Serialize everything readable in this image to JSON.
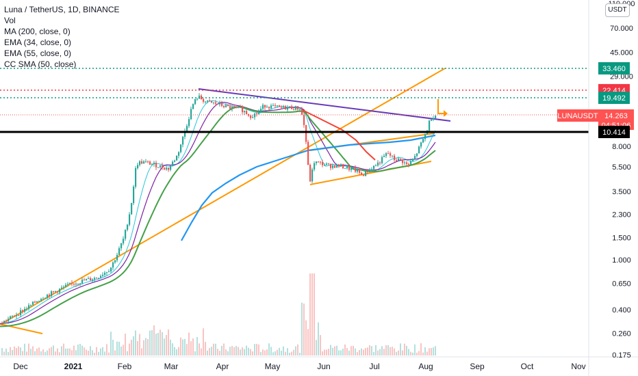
{
  "legend": {
    "title": "Luna / TetherUS, 1D, BINANCE",
    "items": [
      "Vol",
      "MA (200, close, 0)",
      "EMA (34, close, 0)",
      "EMA (55, close, 0)",
      "CC SMA (50, close)"
    ]
  },
  "currency_button": "USDT",
  "price_axis": {
    "ticks": [
      "110.000",
      "70.000",
      "45.000",
      "29.000",
      "8.000",
      "5.500",
      "3.500",
      "2.300",
      "1.500",
      "1.000",
      "0.650",
      "0.400",
      "0.260",
      "0.175"
    ],
    "tick_values": [
      110,
      70,
      45,
      29,
      8,
      5.5,
      3.5,
      2.3,
      1.5,
      1.0,
      0.65,
      0.4,
      0.26,
      0.175
    ],
    "ylim": [
      0.175,
      110
    ],
    "scale": "log"
  },
  "time_axis": {
    "ticks": [
      "Dec",
      "2021",
      "Feb",
      "Mar",
      "Apr",
      "May",
      "Jun",
      "Jul",
      "Aug",
      "Sep",
      "Oct",
      "Nov"
    ]
  },
  "price_labels": [
    {
      "text": "33.460",
      "value": 33.46,
      "color": "#089981"
    },
    {
      "text": "22.414",
      "value": 22.414,
      "color": "#f23645"
    },
    {
      "text": "19.492",
      "value": 19.492,
      "color": "#089981"
    },
    {
      "text": "LUNAUSDT",
      "value": 14.263,
      "color": "#ff5252",
      "kind": "symbol"
    },
    {
      "text": "14.263",
      "value": 14.263,
      "color": "#ffffff",
      "kind": "last"
    },
    {
      "text": "04:51:06",
      "value": 12.9,
      "color": "#ffffff",
      "kind": "timer"
    },
    {
      "text": "10.414",
      "value": 10.414,
      "color": "#000000"
    }
  ],
  "colors": {
    "up": "#26a69a",
    "down": "#ef5350",
    "ma200": "#2196f3",
    "ema34": "#26c6da",
    "ema55": "#7b1fa2",
    "ccsma": "#43a047",
    "trend_orange": "#ff9800",
    "trend_purple": "#673ab7",
    "trend_red": "#f44336",
    "level_black": "#000000",
    "dotted_green": "#089981",
    "dotted_red": "#f23645"
  },
  "chart_data": {
    "type": "candlestick",
    "title": "Luna / TetherUS, 1D, BINANCE",
    "y_scale": "log",
    "ylim": [
      0.175,
      110
    ],
    "series": [
      {
        "name": "Luna / TetherUS",
        "x": [
          "2020-11-20",
          "2020-12-01",
          "2020-12-15",
          "2021-01-01",
          "2021-01-15",
          "2021-02-01",
          "2021-02-10",
          "2021-02-20",
          "2021-03-01",
          "2021-03-10",
          "2021-03-20",
          "2021-04-01",
          "2021-04-15",
          "2021-05-01",
          "2021-05-15",
          "2021-05-20",
          "2021-06-01",
          "2021-06-15",
          "2021-07-01",
          "2021-07-15",
          "2021-07-25",
          "2021-08-01",
          "2021-08-05"
        ],
        "close": [
          0.31,
          0.35,
          0.4,
          0.5,
          0.58,
          0.75,
          1.5,
          4.5,
          6.5,
          10.5,
          19,
          17,
          15,
          17,
          14,
          7,
          6,
          5,
          5.5,
          7,
          6,
          9,
          14.263
        ]
      }
    ],
    "annotations": [
      "33.460",
      "22.414",
      "19.492",
      "14.263",
      "10.414"
    ]
  }
}
